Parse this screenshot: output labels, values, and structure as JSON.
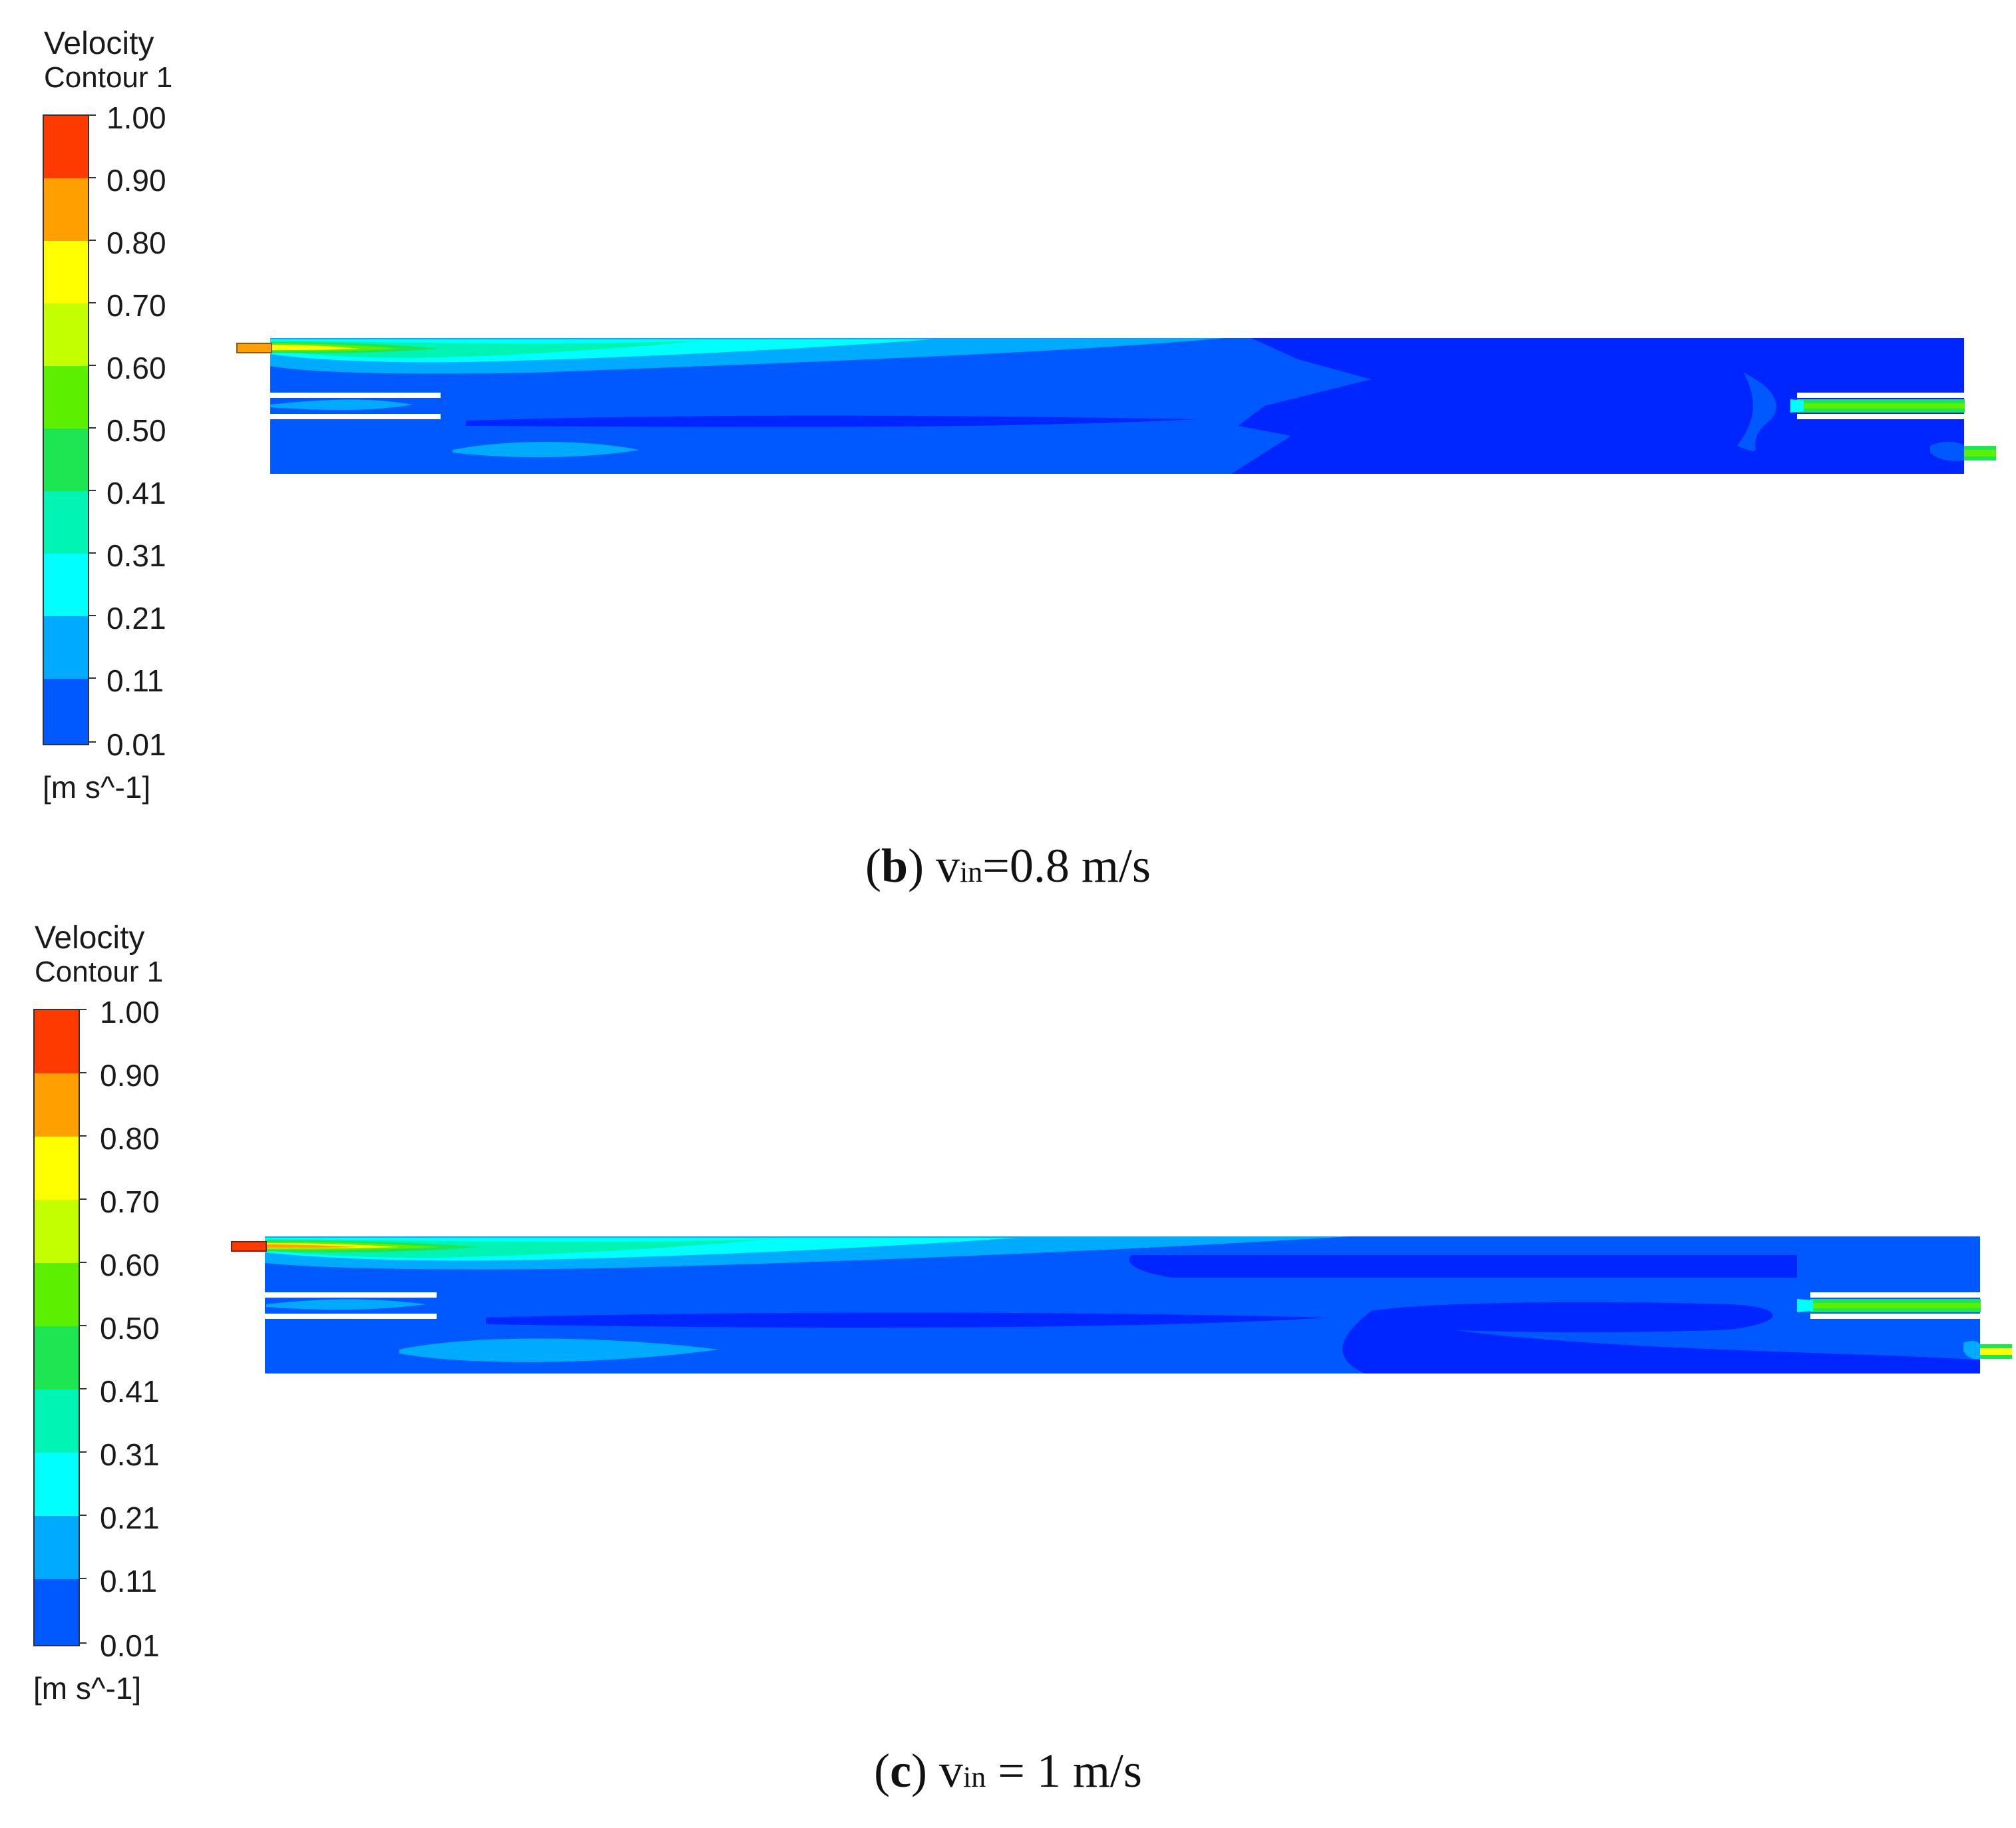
{
  "legend": {
    "title": "Velocity",
    "subtitle": "Contour 1",
    "unit": "[m s^-1]",
    "ticks": [
      "1.00",
      "0.90",
      "0.80",
      "0.70",
      "0.60",
      "0.50",
      "0.41",
      "0.31",
      "0.21",
      "0.11",
      "0.01"
    ],
    "colors": [
      "#ff3a00",
      "#ff9f00",
      "#ffff00",
      "#c4ff00",
      "#5cf000",
      "#1ee653",
      "#00f5b4",
      "#00ffff",
      "#00aaff",
      "#0059ff",
      "#0026ff"
    ]
  },
  "panels": [
    {
      "letter": "b",
      "var": "v",
      "sub": "in",
      "value": "=0.8 m/s"
    },
    {
      "letter": "c",
      "var": "v",
      "sub": "in",
      "value": " = 1 m/s"
    }
  ]
}
